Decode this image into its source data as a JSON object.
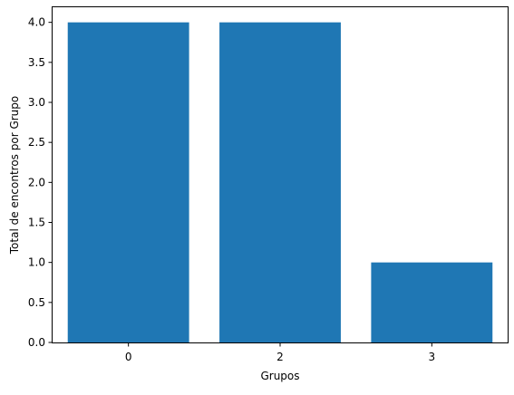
{
  "chart_data": {
    "type": "bar",
    "categories": [
      "0",
      "2",
      "3"
    ],
    "values": [
      4,
      4,
      1
    ],
    "title": "",
    "xlabel": "Grupos",
    "ylabel": "Total de encontros por Grupo",
    "ylim": [
      0,
      4.2
    ],
    "yticks": [
      "0.0",
      "0.5",
      "1.0",
      "1.5",
      "2.0",
      "2.5",
      "3.0",
      "3.5",
      "4.0"
    ],
    "grid": false,
    "bar_color": "#1f77b4"
  }
}
